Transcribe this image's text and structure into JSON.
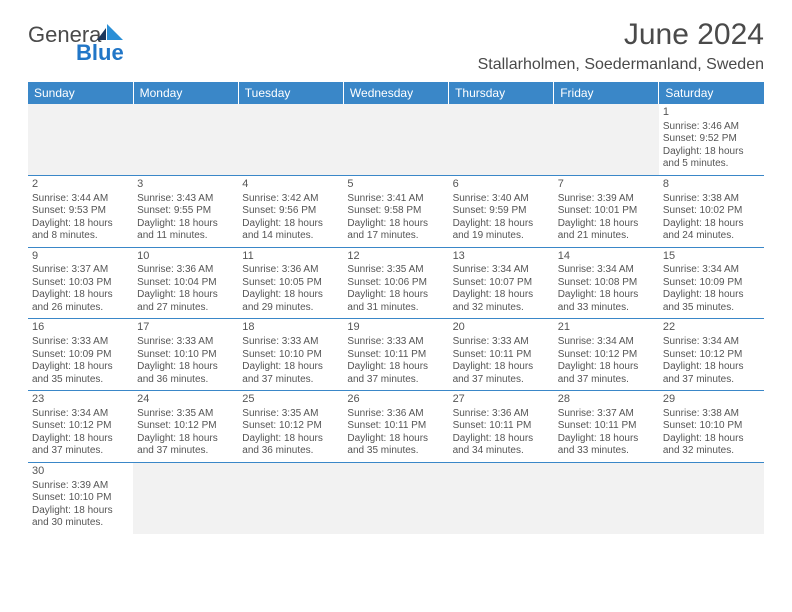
{
  "logo": {
    "part1": "Genera",
    "part2": "Blue"
  },
  "title": "June 2024",
  "location": "Stallarholmen, Soedermanland, Sweden",
  "days": [
    "Sunday",
    "Monday",
    "Tuesday",
    "Wednesday",
    "Thursday",
    "Friday",
    "Saturday"
  ],
  "colors": {
    "header_bg": "#3a87c8",
    "header_text": "#ffffff",
    "rule": "#3a87c8",
    "empty_bg": "#f2f2f2",
    "text": "#555555",
    "logo_blue": "#2176c7",
    "logo_dark": "#1b365d"
  },
  "weeks": [
    [
      null,
      null,
      null,
      null,
      null,
      null,
      {
        "n": "1",
        "sr": "Sunrise: 3:46 AM",
        "ss": "Sunset: 9:52 PM",
        "d1": "Daylight: 18 hours",
        "d2": "and 5 minutes."
      }
    ],
    [
      {
        "n": "2",
        "sr": "Sunrise: 3:44 AM",
        "ss": "Sunset: 9:53 PM",
        "d1": "Daylight: 18 hours",
        "d2": "and 8 minutes."
      },
      {
        "n": "3",
        "sr": "Sunrise: 3:43 AM",
        "ss": "Sunset: 9:55 PM",
        "d1": "Daylight: 18 hours",
        "d2": "and 11 minutes."
      },
      {
        "n": "4",
        "sr": "Sunrise: 3:42 AM",
        "ss": "Sunset: 9:56 PM",
        "d1": "Daylight: 18 hours",
        "d2": "and 14 minutes."
      },
      {
        "n": "5",
        "sr": "Sunrise: 3:41 AM",
        "ss": "Sunset: 9:58 PM",
        "d1": "Daylight: 18 hours",
        "d2": "and 17 minutes."
      },
      {
        "n": "6",
        "sr": "Sunrise: 3:40 AM",
        "ss": "Sunset: 9:59 PM",
        "d1": "Daylight: 18 hours",
        "d2": "and 19 minutes."
      },
      {
        "n": "7",
        "sr": "Sunrise: 3:39 AM",
        "ss": "Sunset: 10:01 PM",
        "d1": "Daylight: 18 hours",
        "d2": "and 21 minutes."
      },
      {
        "n": "8",
        "sr": "Sunrise: 3:38 AM",
        "ss": "Sunset: 10:02 PM",
        "d1": "Daylight: 18 hours",
        "d2": "and 24 minutes."
      }
    ],
    [
      {
        "n": "9",
        "sr": "Sunrise: 3:37 AM",
        "ss": "Sunset: 10:03 PM",
        "d1": "Daylight: 18 hours",
        "d2": "and 26 minutes."
      },
      {
        "n": "10",
        "sr": "Sunrise: 3:36 AM",
        "ss": "Sunset: 10:04 PM",
        "d1": "Daylight: 18 hours",
        "d2": "and 27 minutes."
      },
      {
        "n": "11",
        "sr": "Sunrise: 3:36 AM",
        "ss": "Sunset: 10:05 PM",
        "d1": "Daylight: 18 hours",
        "d2": "and 29 minutes."
      },
      {
        "n": "12",
        "sr": "Sunrise: 3:35 AM",
        "ss": "Sunset: 10:06 PM",
        "d1": "Daylight: 18 hours",
        "d2": "and 31 minutes."
      },
      {
        "n": "13",
        "sr": "Sunrise: 3:34 AM",
        "ss": "Sunset: 10:07 PM",
        "d1": "Daylight: 18 hours",
        "d2": "and 32 minutes."
      },
      {
        "n": "14",
        "sr": "Sunrise: 3:34 AM",
        "ss": "Sunset: 10:08 PM",
        "d1": "Daylight: 18 hours",
        "d2": "and 33 minutes."
      },
      {
        "n": "15",
        "sr": "Sunrise: 3:34 AM",
        "ss": "Sunset: 10:09 PM",
        "d1": "Daylight: 18 hours",
        "d2": "and 35 minutes."
      }
    ],
    [
      {
        "n": "16",
        "sr": "Sunrise: 3:33 AM",
        "ss": "Sunset: 10:09 PM",
        "d1": "Daylight: 18 hours",
        "d2": "and 35 minutes."
      },
      {
        "n": "17",
        "sr": "Sunrise: 3:33 AM",
        "ss": "Sunset: 10:10 PM",
        "d1": "Daylight: 18 hours",
        "d2": "and 36 minutes."
      },
      {
        "n": "18",
        "sr": "Sunrise: 3:33 AM",
        "ss": "Sunset: 10:10 PM",
        "d1": "Daylight: 18 hours",
        "d2": "and 37 minutes."
      },
      {
        "n": "19",
        "sr": "Sunrise: 3:33 AM",
        "ss": "Sunset: 10:11 PM",
        "d1": "Daylight: 18 hours",
        "d2": "and 37 minutes."
      },
      {
        "n": "20",
        "sr": "Sunrise: 3:33 AM",
        "ss": "Sunset: 10:11 PM",
        "d1": "Daylight: 18 hours",
        "d2": "and 37 minutes."
      },
      {
        "n": "21",
        "sr": "Sunrise: 3:34 AM",
        "ss": "Sunset: 10:12 PM",
        "d1": "Daylight: 18 hours",
        "d2": "and 37 minutes."
      },
      {
        "n": "22",
        "sr": "Sunrise: 3:34 AM",
        "ss": "Sunset: 10:12 PM",
        "d1": "Daylight: 18 hours",
        "d2": "and 37 minutes."
      }
    ],
    [
      {
        "n": "23",
        "sr": "Sunrise: 3:34 AM",
        "ss": "Sunset: 10:12 PM",
        "d1": "Daylight: 18 hours",
        "d2": "and 37 minutes."
      },
      {
        "n": "24",
        "sr": "Sunrise: 3:35 AM",
        "ss": "Sunset: 10:12 PM",
        "d1": "Daylight: 18 hours",
        "d2": "and 37 minutes."
      },
      {
        "n": "25",
        "sr": "Sunrise: 3:35 AM",
        "ss": "Sunset: 10:12 PM",
        "d1": "Daylight: 18 hours",
        "d2": "and 36 minutes."
      },
      {
        "n": "26",
        "sr": "Sunrise: 3:36 AM",
        "ss": "Sunset: 10:11 PM",
        "d1": "Daylight: 18 hours",
        "d2": "and 35 minutes."
      },
      {
        "n": "27",
        "sr": "Sunrise: 3:36 AM",
        "ss": "Sunset: 10:11 PM",
        "d1": "Daylight: 18 hours",
        "d2": "and 34 minutes."
      },
      {
        "n": "28",
        "sr": "Sunrise: 3:37 AM",
        "ss": "Sunset: 10:11 PM",
        "d1": "Daylight: 18 hours",
        "d2": "and 33 minutes."
      },
      {
        "n": "29",
        "sr": "Sunrise: 3:38 AM",
        "ss": "Sunset: 10:10 PM",
        "d1": "Daylight: 18 hours",
        "d2": "and 32 minutes."
      }
    ],
    [
      {
        "n": "30",
        "sr": "Sunrise: 3:39 AM",
        "ss": "Sunset: 10:10 PM",
        "d1": "Daylight: 18 hours",
        "d2": "and 30 minutes."
      },
      null,
      null,
      null,
      null,
      null,
      null
    ]
  ]
}
